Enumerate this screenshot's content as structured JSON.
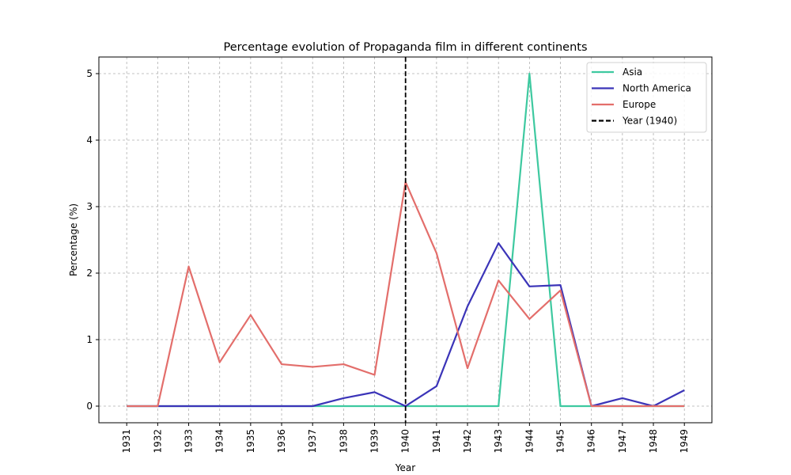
{
  "chart_data": {
    "type": "line",
    "title": "Percentage evolution of Propaganda film in different continents",
    "xlabel": "Year",
    "ylabel": "Percentage (%)",
    "categories": [
      "1931",
      "1932",
      "1933",
      "1934",
      "1935",
      "1936",
      "1937",
      "1938",
      "1939",
      "1940",
      "1941",
      "1942",
      "1943",
      "1944",
      "1945",
      "1946",
      "1947",
      "1948",
      "1949"
    ],
    "yticks": [
      0,
      1,
      2,
      3,
      4,
      5
    ],
    "ylim": [
      -0.25,
      5.25
    ],
    "grid": true,
    "legend_position": "top-right",
    "series": [
      {
        "name": "Asia",
        "color": "#3ec9a0",
        "values": [
          0,
          0,
          0,
          0,
          0,
          0,
          0,
          0,
          0,
          0,
          0,
          0,
          0,
          5.0,
          0,
          0,
          0,
          0,
          0
        ]
      },
      {
        "name": "North America",
        "color": "#3b34b8",
        "values": [
          0,
          0,
          0,
          0,
          0,
          0,
          0,
          0.12,
          0.21,
          0,
          0.3,
          1.5,
          2.45,
          1.8,
          1.82,
          0,
          0.12,
          0,
          0.24
        ]
      },
      {
        "name": "Europe",
        "color": "#e36e6b",
        "values": [
          0,
          0,
          2.1,
          0.66,
          1.37,
          0.63,
          0.59,
          0.63,
          0.47,
          3.37,
          2.3,
          0.57,
          1.89,
          1.31,
          1.74,
          0,
          0,
          0,
          0
        ]
      }
    ],
    "reference_line": {
      "label": "Year (1940)",
      "x": "1940",
      "color": "#000000",
      "style": "dashed"
    }
  }
}
